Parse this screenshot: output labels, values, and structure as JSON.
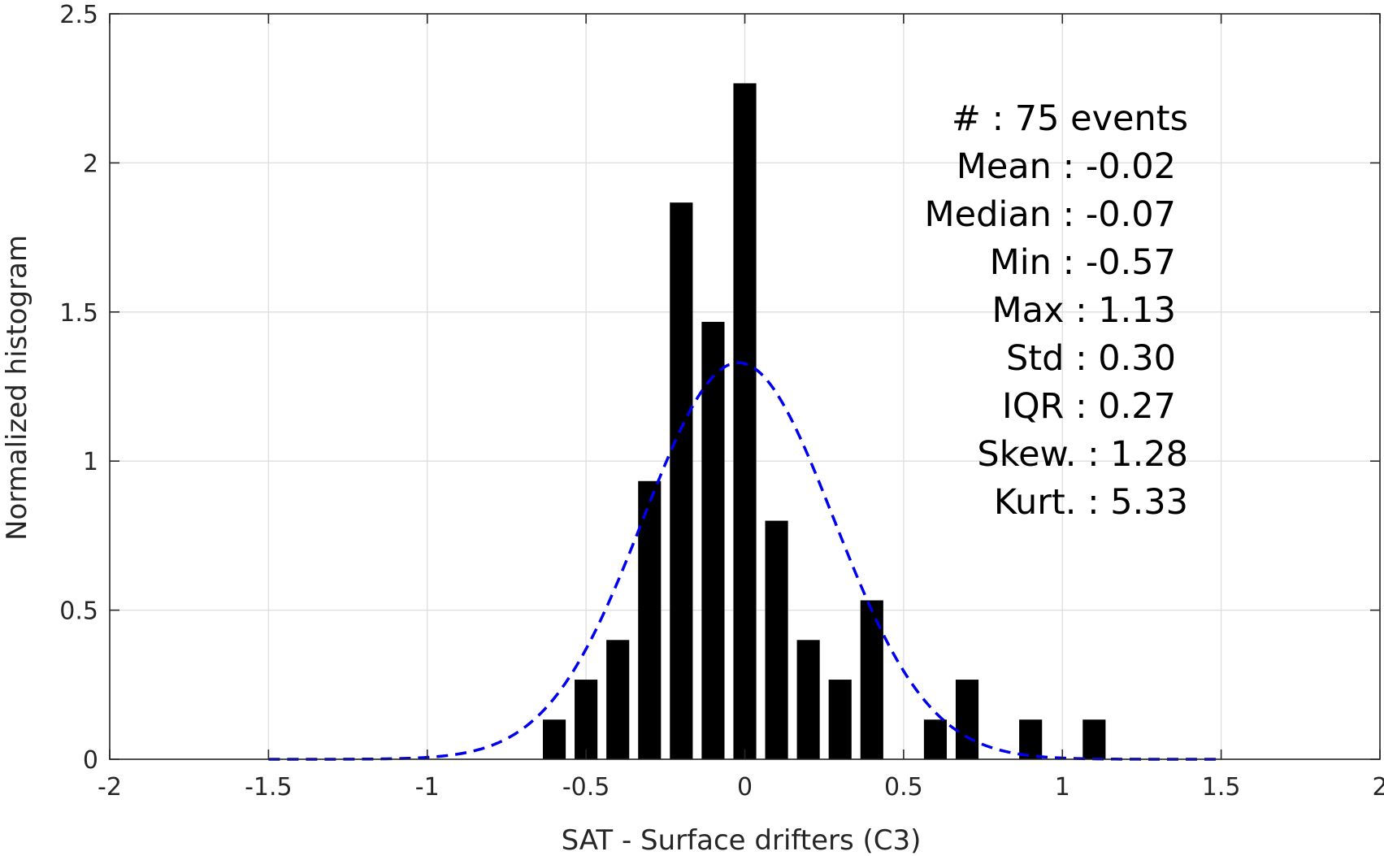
{
  "chart_data": {
    "type": "bar",
    "title": "",
    "xlabel": "SAT - Surface drifters (C3)",
    "ylabel": "Normalized histogram",
    "xlim": [
      -2,
      2
    ],
    "ylim": [
      0,
      2.5
    ],
    "xticks": [
      -2,
      -1.5,
      -1,
      -0.5,
      0,
      0.5,
      1,
      1.5,
      2
    ],
    "xtick_labels": [
      "-2",
      "-1.5",
      "-1",
      "-0.5",
      "0",
      "0.5",
      "1",
      "1.5",
      "2"
    ],
    "yticks": [
      0,
      0.5,
      1,
      1.5,
      2,
      2.5
    ],
    "ytick_labels": [
      "0",
      "0.5",
      "1",
      "1.5",
      "2",
      "2.5"
    ],
    "grid": true,
    "bin_width": 0.1,
    "bar_color": "#000000",
    "bars": {
      "x": [
        -0.6,
        -0.5,
        -0.4,
        -0.3,
        -0.2,
        -0.1,
        0.0,
        0.1,
        0.2,
        0.3,
        0.4,
        0.6,
        0.7,
        0.9,
        1.1
      ],
      "values": [
        0.133,
        0.267,
        0.4,
        0.933,
        1.867,
        1.467,
        2.267,
        0.8,
        0.4,
        0.267,
        0.533,
        0.133,
        0.267,
        0.133,
        0.133
      ]
    },
    "fit_curve": {
      "style": "dashed",
      "color": "#0000ee",
      "mean": -0.02,
      "std": 0.3,
      "x_range": [
        -1.5,
        1.5
      ]
    },
    "stats": [
      {
        "label": "#  ",
        "sep": ": ",
        "value": "75 events"
      },
      {
        "label": "Mean ",
        "sep": ": ",
        "value": "-0.02"
      },
      {
        "label": "Median ",
        "sep": ": ",
        "value": "-0.07"
      },
      {
        "label": "Min ",
        "sep": ": ",
        "value": "-0.57"
      },
      {
        "label": "Max ",
        "sep": ": ",
        "value": "1.13"
      },
      {
        "label": "Std ",
        "sep": ": ",
        "value": "0.30"
      },
      {
        "label": "IQR ",
        "sep": ": ",
        "value": "0.27"
      },
      {
        "label": "Skew. ",
        "sep": ": ",
        "value": "1.28"
      },
      {
        "label": "Kurt. ",
        "sep": ": ",
        "value": "5.33"
      }
    ],
    "stats_lines": [
      "#  : 75 events",
      "Mean : -0.02",
      "Median : -0.07",
      "Min : -0.57",
      "Max : 1.13",
      "Std : 0.30",
      "IQR : 0.27",
      "Skew. : 1.28",
      "Kurt. : 5.33"
    ]
  }
}
